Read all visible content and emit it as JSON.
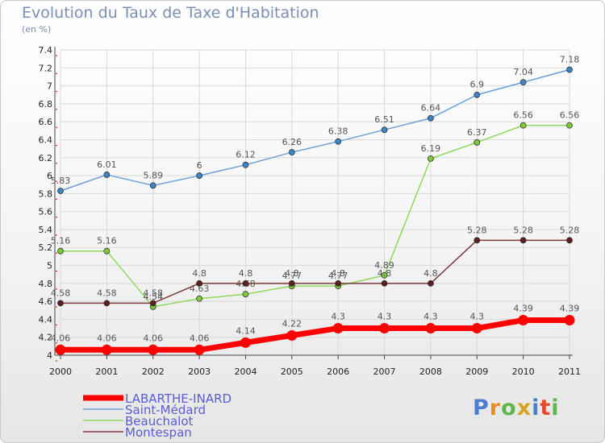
{
  "title": "Evolution du Taux de Taxe d'Habitation",
  "unit": "(en %)",
  "logo": "Proxiti",
  "chart_data": {
    "type": "line",
    "title": "Evolution du Taux de Taxe d'Habitation",
    "ylabel": "(en %)",
    "x": [
      "2000",
      "2001",
      "2002",
      "2003",
      "2004",
      "2005",
      "2006",
      "2007",
      "2008",
      "2009",
      "2010",
      "2011"
    ],
    "ylim": [
      4,
      7.4
    ],
    "yticks": [
      "4",
      "4.2",
      "4.4",
      "4.6",
      "4.8",
      "5",
      "5.2",
      "5.4",
      "5.6",
      "5.8",
      "6",
      "6.2",
      "6.4",
      "6.6",
      "6.8",
      "7",
      "7.2",
      "7.4"
    ],
    "grid": true,
    "legend": "bottom-left",
    "series": [
      {
        "name": "Saint-Médard",
        "color": "#6aa0d8",
        "marker": "#3a86c8",
        "values": [
          5.83,
          6.01,
          5.89,
          6,
          6.12,
          6.26,
          6.38,
          6.51,
          6.64,
          6.9,
          7.04,
          7.18
        ],
        "labels": [
          "5.83",
          "6.01",
          "5.89",
          "6",
          "6.12",
          "6.26",
          "6.38",
          "6.51",
          "6.64",
          "6.9",
          "7.04",
          "7.18"
        ]
      },
      {
        "name": "Beauchalot",
        "color": "#8fd85a",
        "marker": "#7ecb3a",
        "values": [
          5.16,
          5.16,
          4.54,
          4.63,
          4.68,
          4.77,
          4.77,
          4.89,
          6.19,
          6.37,
          6.56,
          6.56
        ],
        "labels": [
          "5.16",
          "5.16",
          "4.54",
          "4.63",
          "4.68",
          "4.77",
          "4.77",
          "4.89",
          "6.19",
          "6.37",
          "6.56",
          "6.56"
        ]
      },
      {
        "name": "Montespan",
        "color": "#7b3a3a",
        "marker": "#5e1e1e",
        "values": [
          4.58,
          4.58,
          4.58,
          4.8,
          4.8,
          4.8,
          4.8,
          4.8,
          4.8,
          5.28,
          5.28,
          5.28
        ],
        "labels": [
          "4.58",
          "4.58",
          "4.58",
          "4.8",
          "4.8",
          "4.8",
          "4.8",
          "4.8",
          "4.8",
          "5.28",
          "5.28",
          "5.28"
        ]
      },
      {
        "name": "LABARTHE-INARD",
        "color": "#ff0000",
        "marker": "#ff0000",
        "values": [
          4.06,
          4.06,
          4.06,
          4.06,
          4.14,
          4.22,
          4.3,
          4.3,
          4.3,
          4.3,
          4.39,
          4.39
        ],
        "labels": [
          "4.06",
          "4.06",
          "4.06",
          "4.06",
          "4.14",
          "4.22",
          "4.3",
          "4.3",
          "4.3",
          "4.3",
          "4.39",
          "4.39"
        ]
      }
    ],
    "legend_order": [
      "LABARTHE-INARD",
      "Saint-Médard",
      "Beauchalot",
      "Montespan"
    ]
  }
}
